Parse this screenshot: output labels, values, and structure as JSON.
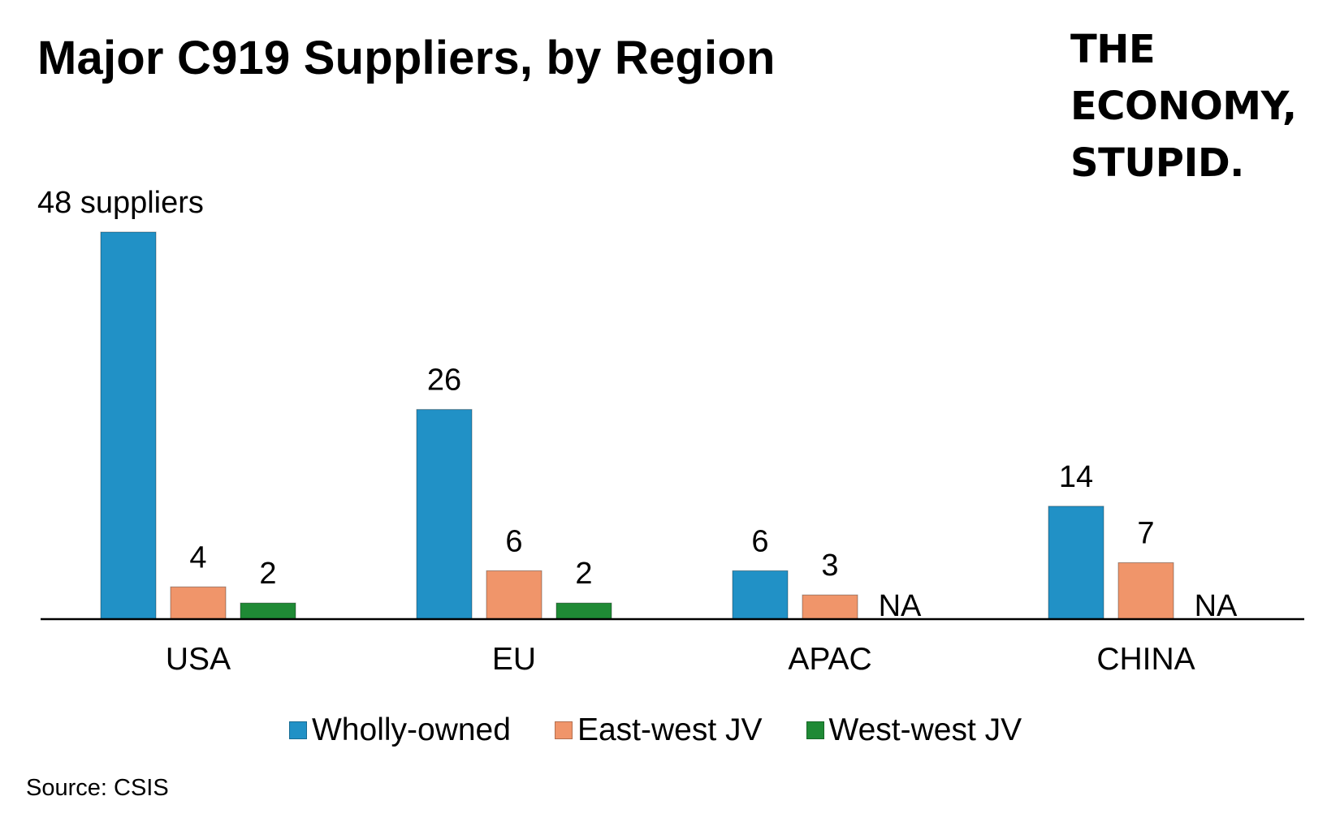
{
  "title": "Major C919 Suppliers, by Region",
  "brand": {
    "line1": "THE",
    "line2": "ECONOMY,",
    "line3": "STUPID."
  },
  "source": "Source: CSIS",
  "colors": {
    "wholly_owned": "#2191c6",
    "east_west_jv": "#f0956a",
    "west_west_jv": "#1f8a35"
  },
  "chart_data": {
    "type": "bar",
    "title": "Major C919 Suppliers, by Region",
    "xlabel": "",
    "ylabel": "",
    "ylim": [
      0,
      48
    ],
    "grid": false,
    "legend_position": "bottom",
    "categories": [
      "USA",
      "EU",
      "APAC",
      "CHINA"
    ],
    "series": [
      {
        "name": "Wholly-owned",
        "values": [
          48,
          26,
          6,
          14
        ],
        "labels": [
          "48 suppliers",
          "26",
          "6",
          "14"
        ]
      },
      {
        "name": "East-west JV",
        "values": [
          4,
          6,
          3,
          7
        ],
        "labels": [
          "4",
          "6",
          "3",
          "7"
        ]
      },
      {
        "name": "West-west JV",
        "values": [
          2,
          2,
          null,
          null
        ],
        "labels": [
          "2",
          "2",
          "NA",
          "NA"
        ]
      }
    ]
  }
}
